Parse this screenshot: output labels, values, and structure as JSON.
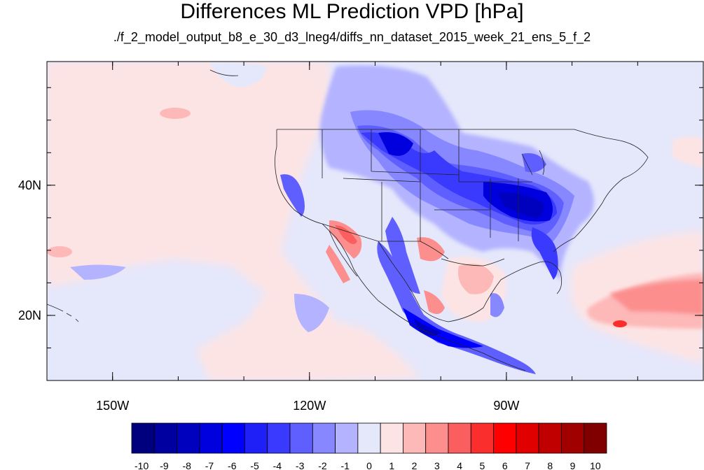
{
  "title": "Differences ML Prediction VPD [hPa]",
  "subtitle": "./f_2_model_output_b8_e_30_d3_lneg4/diffs_nn_dataset_2015_week_21_ens_5_f_2",
  "map": {
    "lon_range": [
      -160,
      -60
    ],
    "lat_range": [
      10,
      59
    ],
    "x_ticks": [
      {
        "lon": -150,
        "label": "150W"
      },
      {
        "lon": -120,
        "label": "120W"
      },
      {
        "lon": -90,
        "label": "90W"
      }
    ],
    "y_ticks": [
      {
        "lat": 40,
        "label": "40N"
      },
      {
        "lat": 20,
        "label": "20N"
      }
    ],
    "background_color": "#e5e7fb"
  },
  "colorbar": {
    "levels": [
      "-10",
      "-9",
      "-8",
      "-7",
      "-6",
      "-5",
      "-4",
      "-3",
      "-2",
      "-1",
      "0",
      "1",
      "2",
      "3",
      "4",
      "5",
      "6",
      "7",
      "8",
      "9",
      "10"
    ],
    "colors": [
      "#00007f",
      "#0000a0",
      "#0000bf",
      "#0000de",
      "#0000ff",
      "#1f1ff8",
      "#3a3aff",
      "#5f5fff",
      "#8787ff",
      "#b3b3ff",
      "#e5e7fb",
      "#fde4e4",
      "#fdb8b8",
      "#fc8e8e",
      "#fb5e5e",
      "#fb2e2e",
      "#ff0000",
      "#e00000",
      "#c00000",
      "#a00000",
      "#800000"
    ]
  }
}
